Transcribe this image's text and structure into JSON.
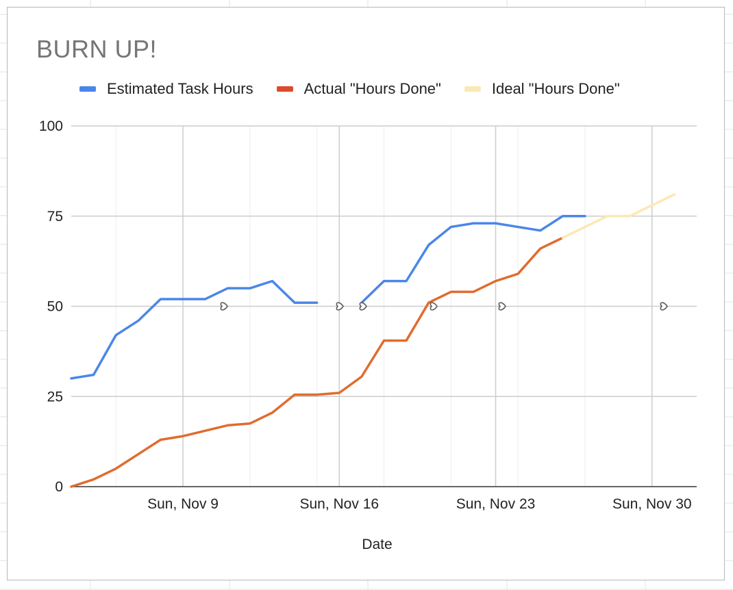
{
  "chart_data": {
    "type": "line",
    "title": "BURN UP!",
    "xlabel": "Date",
    "ylabel": "",
    "ylim": [
      0,
      100
    ],
    "yticks": [
      0,
      25,
      50,
      75,
      100
    ],
    "xticks": [
      "Sun, Nov 9",
      "Sun, Nov 16",
      "Sun, Nov 23",
      "Sun, Nov 30"
    ],
    "x_start_label": "Sun, Nov 9",
    "x_offsets_days": [
      -5,
      -4,
      -3,
      -2,
      -1,
      0,
      1,
      2,
      3,
      4,
      5,
      6,
      7,
      8,
      9,
      10,
      11,
      12,
      13,
      14,
      15,
      16,
      17,
      18,
      19,
      20,
      21,
      22,
      23
    ],
    "legend_position": "top",
    "grid": true,
    "series": [
      {
        "name": "Estimated Task Hours",
        "color": "#4a86e8",
        "values": [
          30,
          31,
          42,
          46,
          52,
          52,
          52,
          55,
          55,
          57,
          51,
          51,
          null,
          51,
          57,
          57,
          67,
          72,
          73,
          73,
          72,
          71,
          75,
          75,
          null,
          null,
          null,
          null,
          null
        ]
      },
      {
        "name": "Actual \"Hours Done\"",
        "color": "#e06c2e",
        "values": [
          0,
          2,
          5,
          9,
          13,
          14,
          15.5,
          17,
          17.5,
          20.5,
          25.5,
          25.5,
          26,
          30.5,
          40.5,
          40.5,
          51,
          54,
          54,
          57,
          59,
          66,
          69,
          null,
          null,
          null,
          null,
          null,
          null
        ]
      },
      {
        "name": "Ideal \"Hours Done\"",
        "color": "#fce8b2",
        "values": [
          null,
          null,
          null,
          null,
          null,
          null,
          null,
          null,
          null,
          null,
          null,
          null,
          null,
          null,
          null,
          null,
          null,
          null,
          null,
          null,
          null,
          null,
          69,
          72,
          75,
          75,
          78,
          81,
          null
        ]
      }
    ],
    "legend_swatch_colors": [
      "#4a86e8",
      "#dd4b2f",
      "#fce8b2"
    ],
    "markers": [
      "heart",
      "heart",
      "heart",
      "heart",
      "heart",
      "heart"
    ]
  }
}
